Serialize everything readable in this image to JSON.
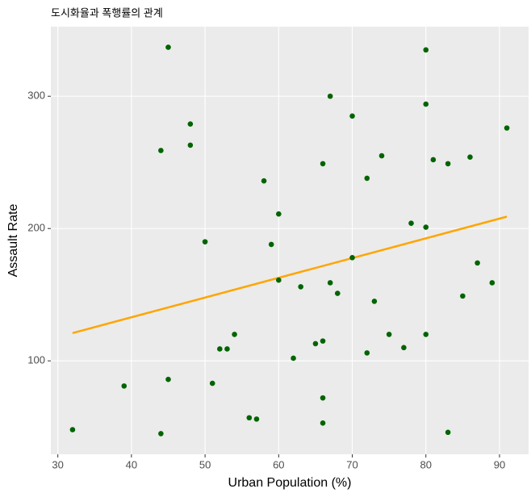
{
  "chart_data": {
    "type": "scatter",
    "title": "도시화율과 폭행률의 관계",
    "x_label": "Urban Population (%)",
    "y_label": "Assault Rate",
    "x": [
      58,
      48,
      80,
      50,
      91,
      78,
      77,
      72,
      80,
      60,
      83,
      54,
      83,
      65,
      57,
      66,
      52,
      66,
      51,
      67,
      85,
      74,
      66,
      44,
      70,
      53,
      62,
      81,
      56,
      89,
      70,
      86,
      45,
      44,
      75,
      68,
      67,
      72,
      87,
      48,
      45,
      59,
      80,
      80,
      32,
      63,
      73,
      39,
      66,
      60
    ],
    "values": [
      236,
      263,
      294,
      190,
      276,
      204,
      110,
      238,
      335,
      211,
      46,
      120,
      249,
      113,
      56,
      115,
      109,
      249,
      83,
      300,
      149,
      255,
      72,
      259,
      178,
      109,
      102,
      252,
      57,
      159,
      285,
      254,
      337,
      45,
      120,
      151,
      159,
      106,
      174,
      279,
      86,
      188,
      201,
      120,
      48,
      156,
      145,
      81,
      53,
      161
    ],
    "color": "#006400",
    "fit_line": {
      "x": [
        32,
        91
      ],
      "values": [
        121,
        209
      ],
      "color": "#ffa500"
    },
    "xlim": [
      29.05,
      93.95
    ],
    "xticks": [
      30,
      40,
      50,
      60,
      70,
      80,
      90
    ],
    "ylim": [
      29.4,
      352.6
    ],
    "yticks": [
      100,
      200,
      300
    ],
    "grid": true
  }
}
